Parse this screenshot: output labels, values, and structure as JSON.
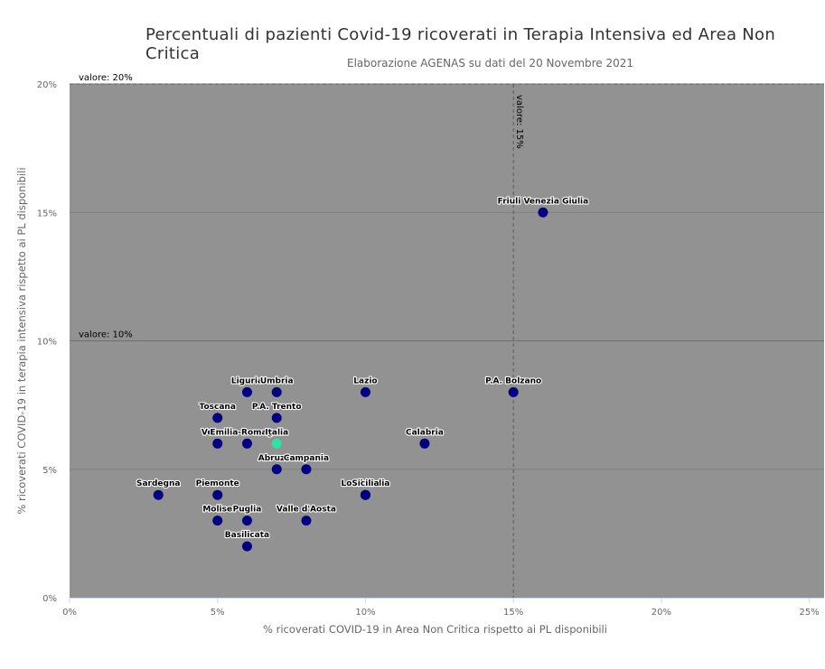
{
  "chart_data": {
    "type": "scatter",
    "title": "Percentuali di pazienti Covid-19 ricoverati in Terapia Intensiva ed Area Non Critica",
    "subtitle": "Elaborazione AGENAS su dati del 20 Novembre 2021",
    "xlabel": "% ricoverati COVID-19 in Area Non Critica rispetto ai PL disponibili",
    "ylabel": "% ricoverati COVID-19 in terapia intensiva rispetto ai PL disponibili",
    "xlim": [
      0,
      25.5
    ],
    "ylim": [
      0,
      20
    ],
    "x_ticks": [
      {
        "value": 0,
        "label": "0%"
      },
      {
        "value": 5,
        "label": "5%"
      },
      {
        "value": 10,
        "label": "10%"
      },
      {
        "value": 15,
        "label": "15%"
      },
      {
        "value": 20,
        "label": "20%"
      },
      {
        "value": 25,
        "label": "25%"
      }
    ],
    "y_ticks": [
      {
        "value": 0,
        "label": "0%"
      },
      {
        "value": 5,
        "label": "5%"
      },
      {
        "value": 10,
        "label": "10%"
      },
      {
        "value": 15,
        "label": "15%"
      },
      {
        "value": 20,
        "label": "20%"
      }
    ],
    "reference_lines": [
      {
        "axis": "y",
        "value": 20,
        "label": "valore: 20%",
        "style": "dashed"
      },
      {
        "axis": "y",
        "value": 10,
        "label": "valore: 10%",
        "style": "solid"
      },
      {
        "axis": "x",
        "value": 15,
        "label": "valore: 15%",
        "style": "dashed"
      }
    ],
    "plot_background": "#929292",
    "point_color": "#000080",
    "highlight_color": "#2be3a3",
    "grid": true,
    "legend": "none",
    "points": [
      {
        "name": "Friuli Venezia Giulia",
        "x": 16,
        "y": 15
      },
      {
        "name": "Liguria",
        "x": 6,
        "y": 8
      },
      {
        "name": "Umbria",
        "x": 7,
        "y": 8
      },
      {
        "name": "Lazio",
        "x": 10,
        "y": 8
      },
      {
        "name": "P.A. Bolzano",
        "x": 15,
        "y": 8
      },
      {
        "name": "Toscana",
        "x": 5,
        "y": 7
      },
      {
        "name": "P.A. Trento",
        "x": 7,
        "y": 7
      },
      {
        "name": "Veneto",
        "x": 5,
        "y": 6
      },
      {
        "name": "Emilia-Romagna",
        "x": 6,
        "y": 6
      },
      {
        "name": "Italia",
        "x": 7,
        "y": 6,
        "highlight": true
      },
      {
        "name": "Calabria",
        "x": 12,
        "y": 6
      },
      {
        "name": "Abruzzo",
        "x": 7,
        "y": 5
      },
      {
        "name": "Campania",
        "x": 8,
        "y": 5
      },
      {
        "name": "Sardegna",
        "x": 3,
        "y": 4
      },
      {
        "name": "Piemonte",
        "x": 5,
        "y": 4
      },
      {
        "name": "Lombardia",
        "x": 10,
        "y": 4
      },
      {
        "name": "Sicilia",
        "x": 10,
        "y": 4
      },
      {
        "name": "Molise",
        "x": 5,
        "y": 3
      },
      {
        "name": "Puglia",
        "x": 6,
        "y": 3
      },
      {
        "name": "Valle d'Aosta",
        "x": 8,
        "y": 3
      },
      {
        "name": "Basilicata",
        "x": 6,
        "y": 2
      }
    ]
  }
}
